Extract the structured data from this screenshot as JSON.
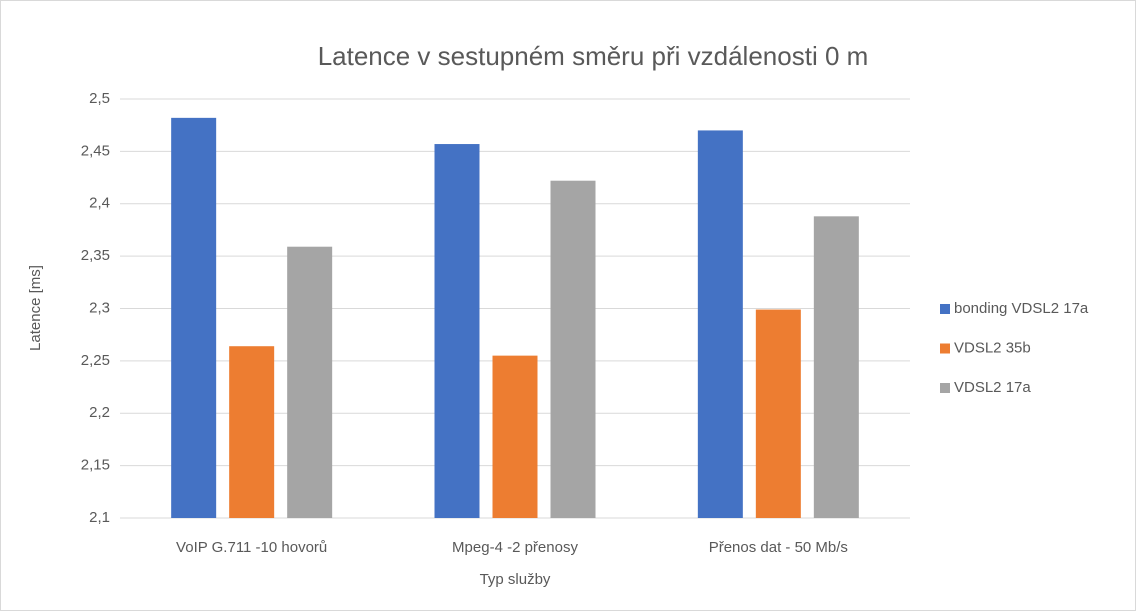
{
  "chart_data": {
    "type": "bar",
    "title": "Latence v sestupném směru při vzdálenosti 0 m",
    "x_label": "Typ služby",
    "y_label": "Latence [ms]",
    "categories": [
      "VoIP G.711 -10 hovorů",
      "Mpeg-4 -2 přenosy",
      "Přenos dat - 50 Mb/s"
    ],
    "series": [
      {
        "name": "bonding VDSL2 17a",
        "color": "#4472c4",
        "values": [
          2.482,
          2.457,
          2.47
        ]
      },
      {
        "name": "VDSL2 35b",
        "color": "#ed7d31",
        "values": [
          2.264,
          2.255,
          2.299
        ]
      },
      {
        "name": "VDSL2 17a",
        "color": "#a5a5a5",
        "values": [
          2.359,
          2.422,
          2.388
        ]
      }
    ],
    "ylim": [
      2.1,
      2.5
    ],
    "yticks": [
      {
        "value": 2.1,
        "label": "2,1"
      },
      {
        "value": 2.15,
        "label": "2,15"
      },
      {
        "value": 2.2,
        "label": "2,2"
      },
      {
        "value": 2.25,
        "label": "2,25"
      },
      {
        "value": 2.3,
        "label": "2,3"
      },
      {
        "value": 2.35,
        "label": "2,35"
      },
      {
        "value": 2.4,
        "label": "2,4"
      },
      {
        "value": 2.45,
        "label": "2,45"
      },
      {
        "value": 2.5,
        "label": "2,5"
      }
    ],
    "grid": true,
    "legend": "right"
  }
}
